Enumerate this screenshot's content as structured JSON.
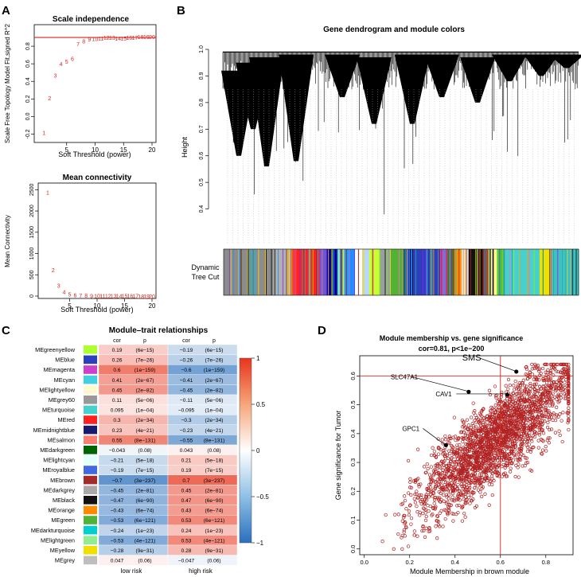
{
  "panels": {
    "A": "A",
    "B": "B",
    "C": "C",
    "D": "D"
  },
  "colors": {
    "red": "#d9261c",
    "point": "#b22222",
    "dark": "#000000"
  },
  "chart_data": [
    {
      "type": "scatter",
      "title": "Scale independence",
      "xlabel": "Soft Threshold (power)",
      "ylabel": "Scale Free Topology Model Fit,signed R^2",
      "xlim": [
        0,
        20
      ],
      "ylim": [
        -0.25,
        1.0
      ],
      "xticks": [
        "5",
        "10",
        "15",
        "20"
      ],
      "yticks": [
        "-0.2",
        "0.0",
        "0.2",
        "0.4",
        "0.6",
        "0.8"
      ],
      "hline": 0.9,
      "x": [
        1,
        2,
        3,
        4,
        5,
        6,
        7,
        8,
        9,
        10,
        11,
        12,
        13,
        14,
        15,
        16,
        17,
        18,
        19,
        20
      ],
      "y": [
        -0.18,
        0.21,
        0.47,
        0.6,
        0.63,
        0.66,
        0.83,
        0.86,
        0.88,
        0.885,
        0.89,
        0.9,
        0.9,
        0.89,
        0.89,
        0.9,
        0.9,
        0.91,
        0.91,
        0.91
      ],
      "point_labels": [
        "1",
        "2",
        "3",
        "4",
        "5",
        "6",
        "7",
        "8",
        "9",
        "10",
        "11",
        "12",
        "13",
        "14",
        "15",
        "16",
        "17",
        "18",
        "19",
        "20"
      ]
    },
    {
      "type": "scatter",
      "title": "Mean connectivity",
      "xlabel": "Soft Threshold (power)",
      "ylabel": "Mean Connectivity",
      "xlim": [
        0,
        20
      ],
      "ylim": [
        0,
        2600
      ],
      "xticks": [
        "5",
        "10",
        "15",
        "20"
      ],
      "yticks": [
        "0",
        "500",
        "1000",
        "1500",
        "2000",
        "2500"
      ],
      "x": [
        1,
        2,
        3,
        4,
        5,
        6,
        7,
        8,
        9,
        10,
        11,
        12,
        13,
        14,
        15,
        16,
        17,
        18,
        19,
        20
      ],
      "y": [
        2440,
        620,
        250,
        100,
        50,
        30,
        20,
        15,
        12,
        10,
        9,
        8,
        7,
        6,
        6,
        5,
        5,
        4,
        4,
        4
      ],
      "point_labels": [
        "1",
        "2",
        "3",
        "4",
        "5",
        "6",
        "7",
        "8",
        "9",
        "10",
        "11",
        "12",
        "13",
        "14",
        "15",
        "16",
        "17",
        "18",
        "19",
        "20"
      ]
    },
    {
      "type": "dendrogram",
      "title": "Gene dendrogram and module colors",
      "ylabel": "Height",
      "ylim": [
        0.3,
        1.0
      ],
      "yticks": [
        "0.4",
        "0.5",
        "0.6",
        "0.7",
        "0.8",
        "0.9",
        "1.0"
      ],
      "color_bar_label_1": "Dynamic",
      "color_bar_label_2": "Tree Cut",
      "module_blocks": [
        {
          "color": "#8c8c8c",
          "weight": 14
        },
        {
          "color": "#b0b0b0",
          "weight": 5
        },
        {
          "color": "#ff2020",
          "weight": 8
        },
        {
          "color": "#6a5acd",
          "weight": 2
        },
        {
          "color": "#0000a0",
          "weight": 3
        },
        {
          "color": "#90ee90",
          "weight": 2
        },
        {
          "color": "#1e90ff",
          "weight": 3
        },
        {
          "color": "#ffffff",
          "weight": 2
        },
        {
          "color": "#b8d7ff",
          "weight": 2
        },
        {
          "color": "#c8ff30",
          "weight": 3
        },
        {
          "color": "#9aa0a0",
          "weight": 3
        },
        {
          "color": "#4fb336",
          "weight": 4
        },
        {
          "color": "#2c3fbf",
          "weight": 10
        },
        {
          "color": "#cc40cc",
          "weight": 2
        },
        {
          "color": "#556b2f",
          "weight": 2
        },
        {
          "color": "#ff8c00",
          "weight": 2
        },
        {
          "color": "#e0e0e0",
          "weight": 2
        },
        {
          "color": "#111111",
          "weight": 4
        },
        {
          "color": "#a52a2a",
          "weight": 2
        },
        {
          "color": "#fff68f",
          "weight": 2
        },
        {
          "color": "#32cd32",
          "weight": 2
        },
        {
          "color": "#48d1cc",
          "weight": 10
        },
        {
          "color": "#f0e000",
          "weight": 3
        },
        {
          "color": "#40c0c0",
          "weight": 8
        }
      ]
    },
    {
      "type": "heatmap",
      "title": "Module–trait relationships",
      "columns": [
        "low risk",
        "high risk"
      ],
      "col_header_cor": "cor",
      "col_header_p": "p",
      "scale_ticks": [
        "1",
        "0.5",
        "0",
        "−0.5",
        "−1"
      ],
      "rows": [
        {
          "name": "MEgreenyellow",
          "color": "#adff2f",
          "low_cor": "0.19",
          "low_p": "(6e−15)",
          "high_cor": "−0.19",
          "high_p": "(6e−15)",
          "value": 0.19
        },
        {
          "name": "MEblue",
          "color": "#2c3fbf",
          "low_cor": "0.26",
          "low_p": "(7e−26)",
          "high_cor": "−0.26",
          "high_p": "(7e−26)",
          "value": 0.26
        },
        {
          "name": "MEmagenta",
          "color": "#cc40cc",
          "low_cor": "0.6",
          "low_p": "(1e−159)",
          "high_cor": "−0.6",
          "high_p": "(1e−159)",
          "value": 0.6
        },
        {
          "name": "MEcyan",
          "color": "#40d0e0",
          "low_cor": "0.41",
          "low_p": "(2e−67)",
          "high_cor": "−0.41",
          "high_p": "(2e−67)",
          "value": 0.41
        },
        {
          "name": "MElightyellow",
          "color": "#fffacd",
          "low_cor": "0.45",
          "low_p": "(2e−82)",
          "high_cor": "−0.45",
          "high_p": "(2e−82)",
          "value": 0.45
        },
        {
          "name": "MEgrey60",
          "color": "#999999",
          "low_cor": "0.11",
          "low_p": "(5e−06)",
          "high_cor": "−0.11",
          "high_p": "(5e−06)",
          "value": 0.11
        },
        {
          "name": "MEturquoise",
          "color": "#48d1cc",
          "low_cor": "0.095",
          "low_p": "(1e−04)",
          "high_cor": "−0.095",
          "high_p": "(1e−04)",
          "value": 0.095
        },
        {
          "name": "MEred",
          "color": "#ff2020",
          "low_cor": "0.3",
          "low_p": "(2e−34)",
          "high_cor": "−0.3",
          "high_p": "(2e−34)",
          "value": 0.3
        },
        {
          "name": "MEmidnightblue",
          "color": "#191970",
          "low_cor": "0.23",
          "low_p": "(4e−21)",
          "high_cor": "−0.23",
          "high_p": "(4e−21)",
          "value": 0.23
        },
        {
          "name": "MEsalmon",
          "color": "#fa8072",
          "low_cor": "0.55",
          "low_p": "(8e−131)",
          "high_cor": "−0.55",
          "high_p": "(8e−131)",
          "value": 0.55
        },
        {
          "name": "MEdarkgreen",
          "color": "#006400",
          "low_cor": "−0.043",
          "low_p": "(0.08)",
          "high_cor": "0.043",
          "high_p": "(0.08)",
          "value": -0.043
        },
        {
          "name": "MElightcyan",
          "color": "#e0ffff",
          "low_cor": "−0.21",
          "low_p": "(5e−18)",
          "high_cor": "0.21",
          "high_p": "(5e−18)",
          "value": -0.21
        },
        {
          "name": "MEroyalblue",
          "color": "#4169e1",
          "low_cor": "−0.19",
          "low_p": "(7e−15)",
          "high_cor": "0.19",
          "high_p": "(7e−15)",
          "value": -0.19
        },
        {
          "name": "MEbrown",
          "color": "#a52a2a",
          "low_cor": "−0.7",
          "low_p": "(3e−237)",
          "high_cor": "0.7",
          "high_p": "(3e−237)",
          "value": -0.7
        },
        {
          "name": "MEdarkgrey",
          "color": "#a9a9a9",
          "low_cor": "−0.45",
          "low_p": "(2e−81)",
          "high_cor": "0.45",
          "high_p": "(2e−81)",
          "value": -0.45
        },
        {
          "name": "MEblack",
          "color": "#111111",
          "low_cor": "−0.47",
          "low_p": "(6e−90)",
          "high_cor": "0.47",
          "high_p": "(6e−90)",
          "value": -0.47
        },
        {
          "name": "MEorange",
          "color": "#ff8c00",
          "low_cor": "−0.43",
          "low_p": "(6e−74)",
          "high_cor": "0.43",
          "high_p": "(6e−74)",
          "value": -0.43
        },
        {
          "name": "MEgreen",
          "color": "#4fb336",
          "low_cor": "−0.53",
          "low_p": "(6e−121)",
          "high_cor": "0.53",
          "high_p": "(6e−121)",
          "value": -0.53
        },
        {
          "name": "MEdarkturquoise",
          "color": "#00ced1",
          "low_cor": "−0.24",
          "low_p": "(1e−23)",
          "high_cor": "0.24",
          "high_p": "(1e−23)",
          "value": -0.24
        },
        {
          "name": "MElightgreen",
          "color": "#90ee90",
          "low_cor": "−0.53",
          "low_p": "(4e−121)",
          "high_cor": "0.53",
          "high_p": "(4e−121)",
          "value": -0.53
        },
        {
          "name": "MEyellow",
          "color": "#f0e000",
          "low_cor": "−0.28",
          "low_p": "(9e−31)",
          "high_cor": "0.28",
          "high_p": "(9e−31)",
          "value": -0.28
        },
        {
          "name": "MEgrey",
          "color": "#bebebe",
          "low_cor": "0.047",
          "low_p": "(0.06)",
          "high_cor": "−0.047",
          "high_p": "(0.06)",
          "value": 0.047
        }
      ]
    },
    {
      "type": "scatter",
      "title": "Module membership vs. gene significance",
      "subtitle": "cor=0.81, p<1e−200",
      "xlabel": "Module Membership in brown module",
      "ylabel": "Gene significance for Tumor",
      "xlim": [
        -0.02,
        0.92
      ],
      "ylim": [
        -0.02,
        0.67
      ],
      "xticks": [
        "0.0",
        "0.2",
        "0.4",
        "0.6",
        "0.8"
      ],
      "yticks": [
        "0.0",
        "0.1",
        "0.2",
        "0.3",
        "0.4",
        "0.5",
        "0.6"
      ],
      "vline": 0.6,
      "hline": 0.6,
      "correlation": 0.81,
      "n_points_approx": 2500,
      "annotations": [
        {
          "label": "SMS",
          "x": 0.67,
          "y": 0.615
        },
        {
          "label": "SLC47A1",
          "x": 0.46,
          "y": 0.545
        },
        {
          "label": "CAV1",
          "x": 0.63,
          "y": 0.535
        },
        {
          "label": "GPC1",
          "x": 0.36,
          "y": 0.36
        }
      ]
    }
  ]
}
